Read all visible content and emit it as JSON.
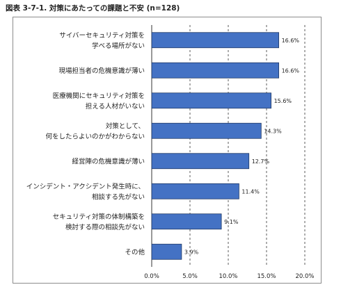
{
  "figure": {
    "title": "図表 3-7-1. 対策にあたっての課題と不安 (n=128)"
  },
  "chart_data": {
    "type": "bar",
    "orientation": "horizontal",
    "title": "図表 3-7-1. 対策にあたっての課題と不安 (n=128)",
    "categories": [
      [
        "サイバーセキュリティ対策を",
        "学べる場所がない"
      ],
      [
        "現場担当者の危機意識が薄い"
      ],
      [
        "医療機関にセキュリティ対策を",
        "担える人材がいない"
      ],
      [
        "対策として、",
        "何をしたらよいのかがわからない"
      ],
      [
        "経営陣の危機意識が薄い"
      ],
      [
        "インシデント・アクシデント発生時に、",
        "相談する先がない"
      ],
      [
        "セキュリティ対策の体制構築を",
        "検討する際の相談先がない"
      ],
      [
        "その他"
      ]
    ],
    "values": [
      16.6,
      16.6,
      15.6,
      14.3,
      12.7,
      11.4,
      9.1,
      3.9
    ],
    "value_labels": [
      "16.6%",
      "16.6%",
      "15.6%",
      "14.3%",
      "12.7%",
      "11.4%",
      "9.1%",
      "3.9%"
    ],
    "xlim": [
      0,
      20
    ],
    "ticks": [
      0,
      5,
      10,
      15,
      20
    ],
    "tick_labels": [
      "0.0%",
      "5.0%",
      "10.0%",
      "15.0%",
      "20.0%"
    ],
    "grid": "vertical-dashed",
    "bar_color": "#4472c4",
    "bar_border": "#1f3864"
  }
}
